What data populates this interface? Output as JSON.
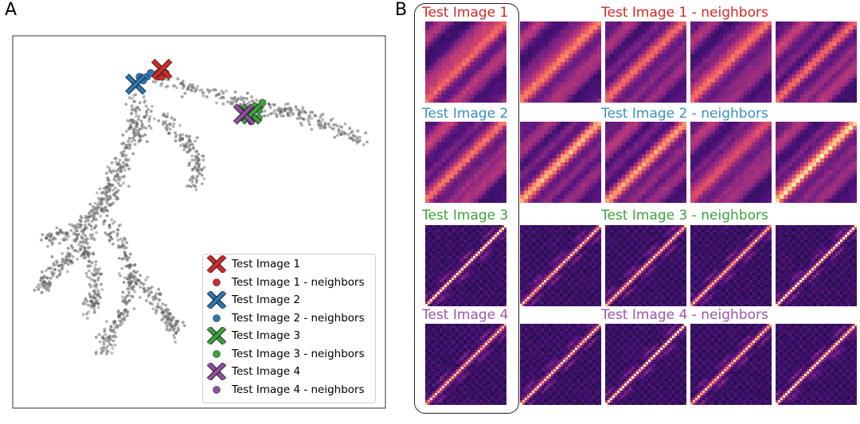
{
  "panel_a": {
    "letter": "A",
    "legend": [
      {
        "label": "Test Image 1",
        "marker": "x",
        "color": "#d62728"
      },
      {
        "label": "Test Image 1 - neighbors",
        "marker": "dot",
        "color": "#d62728"
      },
      {
        "label": "Test Image 2",
        "marker": "x",
        "color": "#2a77b4"
      },
      {
        "label": "Test Image 2 - neighbors",
        "marker": "dot",
        "color": "#2a77b4"
      },
      {
        "label": "Test Image 3",
        "marker": "x",
        "color": "#3aa33a"
      },
      {
        "label": "Test Image 3 - neighbors",
        "marker": "dot",
        "color": "#3aa33a"
      },
      {
        "label": "Test Image 4",
        "marker": "x",
        "color": "#8e4fa0"
      },
      {
        "label": "Test Image 4 - neighbors",
        "marker": "dot",
        "color": "#8e4fa0"
      }
    ]
  },
  "panel_b": {
    "letter": "B",
    "rows": [
      {
        "test_label": "Test Image 1",
        "neighbors_label": "Test Image 1 - neighbors",
        "color": "#d62728"
      },
      {
        "test_label": "Test Image 2",
        "neighbors_label": "Test Image 2 - neighbors",
        "color": "#3a8fc0"
      },
      {
        "test_label": "Test Image 3",
        "neighbors_label": "Test Image 3 - neighbors",
        "color": "#3aa33a"
      },
      {
        "test_label": "Test Image 4",
        "neighbors_label": "Test Image 4 - neighbors",
        "color": "#9a55ab"
      }
    ]
  },
  "chart_data": [
    {
      "type": "scatter",
      "title": "",
      "xlabel": "",
      "ylabel": "",
      "axis_ticks": "none",
      "legend_position": "lower-right",
      "background_points": {
        "color": "#555555",
        "count_approx": 900
      },
      "series": [
        {
          "name": "Test Image 1",
          "marker": "x",
          "color": "#d62728",
          "points": [
            [
              0.4,
              0.91
            ]
          ]
        },
        {
          "name": "Test Image 1 - neighbors",
          "marker": "dot",
          "color": "#d62728",
          "points": [
            [
              0.39,
              0.89
            ],
            [
              0.4,
              0.89
            ],
            [
              0.41,
              0.9
            ],
            [
              0.39,
              0.9
            ]
          ]
        },
        {
          "name": "Test Image 2",
          "marker": "x",
          "color": "#2a77b4",
          "points": [
            [
              0.33,
              0.87
            ]
          ]
        },
        {
          "name": "Test Image 2 - neighbors",
          "marker": "dot",
          "color": "#2a77b4",
          "points": [
            [
              0.34,
              0.89
            ],
            [
              0.36,
              0.89
            ],
            [
              0.35,
              0.88
            ],
            [
              0.37,
              0.9
            ]
          ]
        },
        {
          "name": "Test Image 3",
          "marker": "x",
          "color": "#3aa33a",
          "points": [
            [
              0.64,
              0.79
            ]
          ]
        },
        {
          "name": "Test Image 3 - neighbors",
          "marker": "dot",
          "color": "#3aa33a",
          "points": [
            [
              0.66,
              0.8
            ],
            [
              0.67,
              0.82
            ],
            [
              0.65,
              0.81
            ],
            [
              0.66,
              0.78
            ]
          ]
        },
        {
          "name": "Test Image 4",
          "marker": "x",
          "color": "#8e4fa0",
          "points": [
            [
              0.62,
              0.79
            ]
          ]
        },
        {
          "name": "Test Image 4 - neighbors",
          "marker": "dot",
          "color": "#8e4fa0",
          "points": [
            [
              0.63,
              0.78
            ],
            [
              0.64,
              0.77
            ],
            [
              0.64,
              0.79
            ],
            [
              0.63,
              0.8
            ]
          ]
        }
      ]
    },
    {
      "type": "heatmap",
      "colormap": "magma",
      "grid": "4 rows x 5 columns",
      "columns": [
        "test image",
        "neighbor 1",
        "neighbor 2",
        "neighbor 3",
        "neighbor 4"
      ],
      "row_labels": [
        "Test Image 1",
        "Test Image 2",
        "Test Image 3",
        "Test Image 4"
      ],
      "pattern": [
        "diagonal bands",
        "diagonal bands",
        "fine grid with sharp diagonal",
        "fine grid with sharp diagonal"
      ]
    }
  ]
}
